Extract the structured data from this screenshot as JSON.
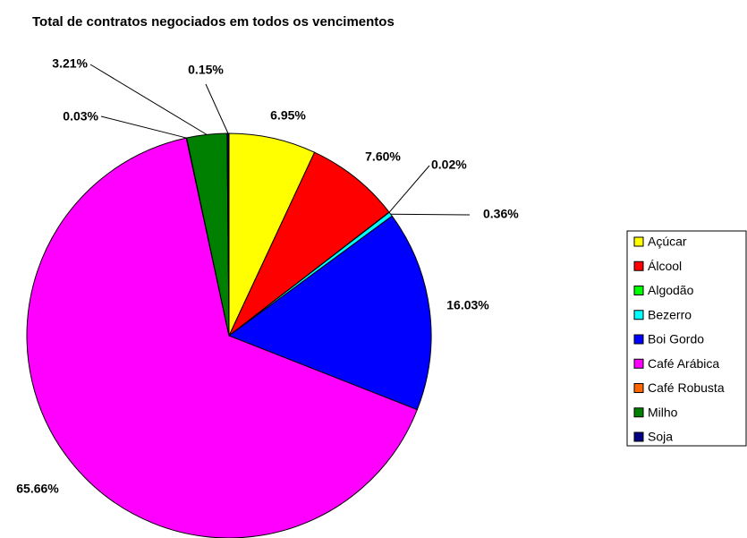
{
  "chart_data": {
    "type": "pie",
    "title": "Total de contratos negociados em todos os vencimentos",
    "categories": [
      "Açúcar",
      "Álcool",
      "Algodão",
      "Bezerro",
      "Boi Gordo",
      "Café Arábica",
      "Café Robusta",
      "Milho",
      "Soja"
    ],
    "values": [
      6.95,
      7.6,
      0.02,
      0.36,
      16.03,
      65.66,
      0.03,
      3.21,
      0.15
    ],
    "value_labels": [
      "6.95%",
      "7.60%",
      "0.02%",
      "0.36%",
      "16.03%",
      "65.66%",
      "0.03%",
      "3.21%",
      "0.15%"
    ],
    "colors": [
      "#ffff00",
      "#ff0000",
      "#00ff00",
      "#00ffff",
      "#0000ff",
      "#ff00ff",
      "#ff6600",
      "#008000",
      "#000080"
    ],
    "legend": "right"
  }
}
